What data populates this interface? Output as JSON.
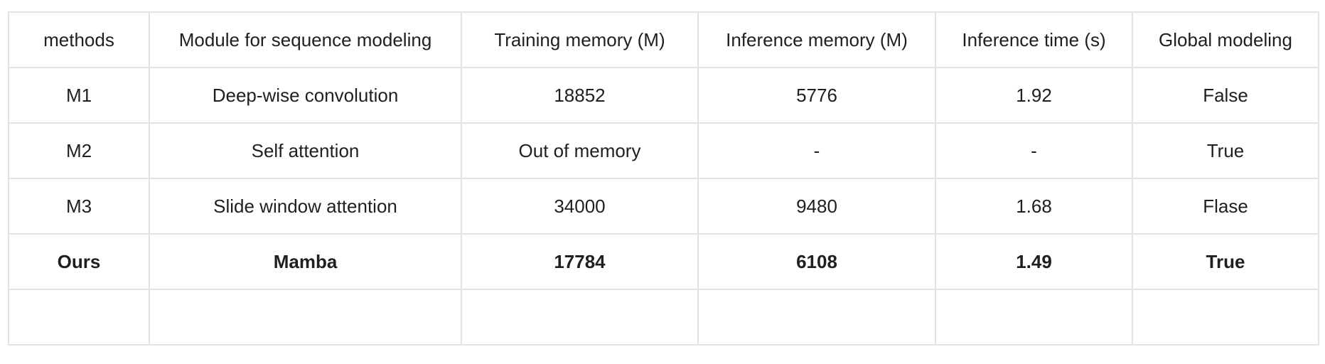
{
  "table": {
    "headers": [
      "methods",
      "Module for sequence modeling",
      "Training memory (M)",
      "Inference memory (M)",
      "Inference time (s)",
      "Global modeling"
    ],
    "rows": [
      [
        "M1",
        "Deep-wise convolution",
        "18852",
        "5776",
        "1.92",
        "False"
      ],
      [
        "M2",
        "Self attention",
        "Out of memory",
        "-",
        "-",
        "True"
      ],
      [
        "M3",
        "Slide window attention",
        "34000",
        "9480",
        "1.68",
        "Flase"
      ],
      [
        "Ours",
        "Mamba",
        "17784",
        "6108",
        "1.49",
        "True"
      ],
      [
        "",
        "",
        "",
        "",
        "",
        ""
      ]
    ],
    "bold_row_index": 3
  }
}
